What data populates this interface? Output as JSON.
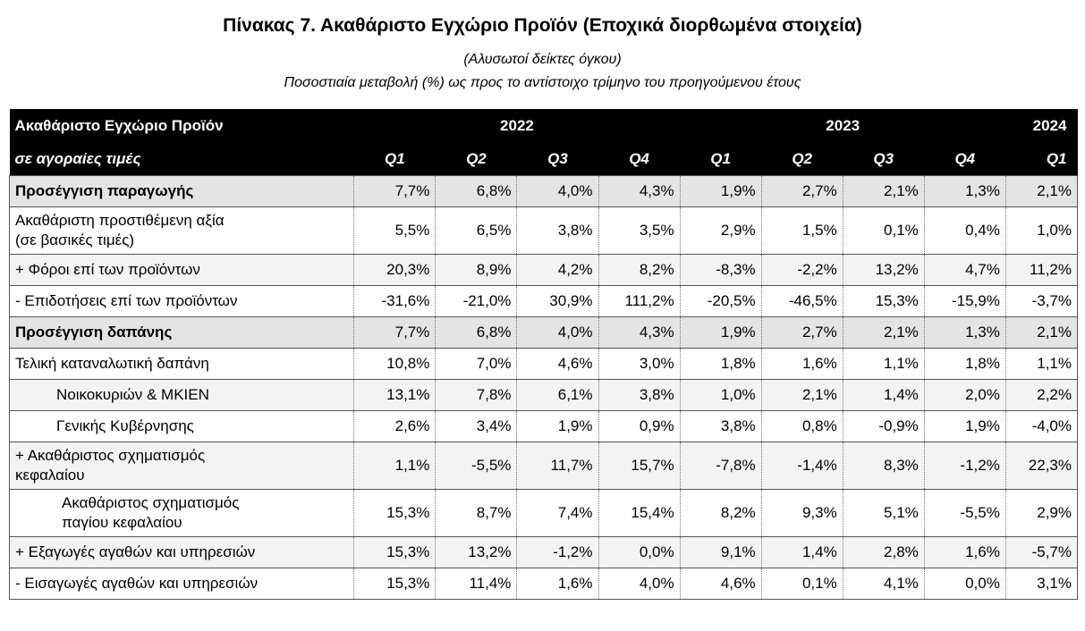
{
  "title": "Πίνακας 7. Ακαθάριστο Εγχώριο Προϊόν (Εποχικά διορθωμένα στοιχεία)",
  "subtitle1": "(Αλυσωτοί δείκτες όγκου)",
  "subtitle2": "Ποσοστιαία μεταβολή (%) ως προς το αντίστοιχο τρίμηνο του προηγούμενου έτους",
  "header": {
    "label1": "Ακαθάριστο Εγχώριο Προϊόν",
    "label2": "σε αγοραίες τιμές",
    "years": [
      "2022",
      "2023",
      "2024"
    ],
    "quarters": [
      "Q1",
      "Q2",
      "Q3",
      "Q4",
      "Q1",
      "Q2",
      "Q3",
      "Q4",
      "Q1"
    ]
  },
  "rows": [
    {
      "label": "Προσέγγιση παραγωγής",
      "values": [
        "7,7%",
        "6,8%",
        "4,0%",
        "4,3%",
        "1,9%",
        "2,7%",
        "2,1%",
        "1,3%",
        "2,1%"
      ]
    },
    {
      "label": "Ακαθάριστη προστιθέμενη αξία (σε βασικές τιμές)",
      "line1": "Ακαθάριστη προστιθέμενη αξία",
      "line2": "(σε βασικές τιμές)",
      "values": [
        "5,5%",
        "6,5%",
        "3,8%",
        "3,5%",
        "2,9%",
        "1,5%",
        "0,1%",
        "0,4%",
        "1,0%"
      ]
    },
    {
      "label": "+  Φόροι επί των προϊόντων",
      "values": [
        "20,3%",
        "8,9%",
        "4,2%",
        "8,2%",
        "-8,3%",
        "-2,2%",
        "13,2%",
        "4,7%",
        "11,2%"
      ]
    },
    {
      "label": "-   Επιδοτήσεις επί των προϊόντων",
      "values": [
        "-31,6%",
        "-21,0%",
        "30,9%",
        "111,2%",
        "-20,5%",
        "-46,5%",
        "15,3%",
        "-15,9%",
        "-3,7%"
      ]
    },
    {
      "label": "Προσέγγιση δαπάνης",
      "values": [
        "7,7%",
        "6,8%",
        "4,0%",
        "4,3%",
        "1,9%",
        "2,7%",
        "2,1%",
        "1,3%",
        "2,1%"
      ]
    },
    {
      "label": "Τελική καταναλωτική δαπάνη",
      "values": [
        "10,8%",
        "7,0%",
        "4,6%",
        "3,0%",
        "1,8%",
        "1,6%",
        "1,1%",
        "1,8%",
        "1,1%"
      ]
    },
    {
      "label": "Νοικοκυριών & ΜΚΙΕΝ",
      "values": [
        "13,1%",
        "7,8%",
        "6,1%",
        "3,8%",
        "1,0%",
        "2,1%",
        "1,4%",
        "2,0%",
        "2,2%"
      ]
    },
    {
      "label": "Γενικής Κυβέρνησης",
      "values": [
        "2,6%",
        "3,4%",
        "1,9%",
        "0,9%",
        "3,8%",
        "0,8%",
        "-0,9%",
        "1,9%",
        "-4,0%"
      ]
    },
    {
      "label": "+ Ακαθάριστος σχηματισμός κεφαλαίου",
      "line1": "+ Ακαθάριστος σχηματισμός",
      "line2": "κεφαλαίου",
      "values": [
        "1,1%",
        "-5,5%",
        "11,7%",
        "15,7%",
        "-7,8%",
        "-1,4%",
        "8,3%",
        "-1,2%",
        "22,3%"
      ]
    },
    {
      "label": "Ακαθάριστος σχηματισμός παγίου κεφαλαίου",
      "line1": "Ακαθάριστος σχηματισμός",
      "line2": "παγίου κεφαλαίου",
      "values": [
        "15,3%",
        "8,7%",
        "7,4%",
        "15,4%",
        "8,2%",
        "9,3%",
        "5,1%",
        "-5,5%",
        "2,9%"
      ]
    },
    {
      "label": "+ Εξαγωγές αγαθών και υπηρεσιών",
      "values": [
        "15,3%",
        "13,2%",
        "-1,2%",
        "0,0%",
        "9,1%",
        "1,4%",
        "2,8%",
        "1,6%",
        "-5,7%"
      ]
    },
    {
      "label": "-  Εισαγωγές αγαθών και υπηρεσιών",
      "values": [
        "15,3%",
        "11,4%",
        "1,6%",
        "4,0%",
        "4,6%",
        "0,1%",
        "4,1%",
        "0,0%",
        "3,1%"
      ]
    }
  ]
}
